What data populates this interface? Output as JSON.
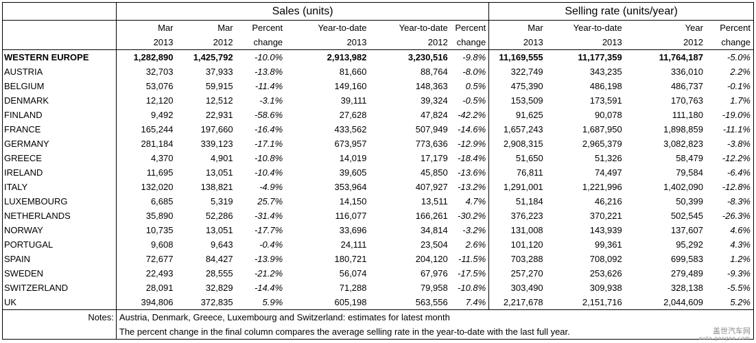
{
  "group_headers": {
    "sales": "Sales (units)",
    "selling": "Selling rate (units/year)"
  },
  "col_headers_line1": [
    "Mar",
    "Mar",
    "Percent",
    "Year-to-date",
    "Year-to-date",
    "Percent",
    "Mar",
    "Year-to-date",
    "Year",
    "Percent"
  ],
  "col_headers_line2": [
    "2013",
    "2012",
    "change",
    "2013",
    "2012",
    "change",
    "2013",
    "2013",
    "2012",
    "change"
  ],
  "rows": [
    {
      "country": "WESTERN EUROPE",
      "v": [
        "1,282,890",
        "1,425,792",
        "-10.0%",
        "2,913,982",
        "3,230,516",
        "-9.8%",
        "11,169,555",
        "11,177,359",
        "11,764,187",
        "-5.0%"
      ]
    },
    {
      "country": "AUSTRIA",
      "v": [
        "32,703",
        "37,933",
        "-13.8%",
        "81,660",
        "88,764",
        "-8.0%",
        "322,749",
        "343,235",
        "336,010",
        "2.2%"
      ]
    },
    {
      "country": "BELGIUM",
      "v": [
        "53,076",
        "59,915",
        "-11.4%",
        "149,160",
        "148,363",
        "0.5%",
        "475,390",
        "486,198",
        "486,737",
        "-0.1%"
      ]
    },
    {
      "country": "DENMARK",
      "v": [
        "12,120",
        "12,512",
        "-3.1%",
        "39,111",
        "39,324",
        "-0.5%",
        "153,509",
        "173,591",
        "170,763",
        "1.7%"
      ]
    },
    {
      "country": "FINLAND",
      "v": [
        "9,492",
        "22,931",
        "-58.6%",
        "27,628",
        "47,824",
        "-42.2%",
        "91,625",
        "90,078",
        "111,180",
        "-19.0%"
      ]
    },
    {
      "country": "FRANCE",
      "v": [
        "165,244",
        "197,660",
        "-16.4%",
        "433,562",
        "507,949",
        "-14.6%",
        "1,657,243",
        "1,687,950",
        "1,898,859",
        "-11.1%"
      ]
    },
    {
      "country": "GERMANY",
      "v": [
        "281,184",
        "339,123",
        "-17.1%",
        "673,957",
        "773,636",
        "-12.9%",
        "2,908,315",
        "2,965,379",
        "3,082,823",
        "-3.8%"
      ]
    },
    {
      "country": "GREECE",
      "v": [
        "4,370",
        "4,901",
        "-10.8%",
        "14,019",
        "17,179",
        "-18.4%",
        "51,650",
        "51,326",
        "58,479",
        "-12.2%"
      ]
    },
    {
      "country": "IRELAND",
      "v": [
        "11,695",
        "13,051",
        "-10.4%",
        "39,605",
        "45,850",
        "-13.6%",
        "76,811",
        "74,497",
        "79,584",
        "-6.4%"
      ]
    },
    {
      "country": "ITALY",
      "v": [
        "132,020",
        "138,821",
        "-4.9%",
        "353,964",
        "407,927",
        "-13.2%",
        "1,291,001",
        "1,221,996",
        "1,402,090",
        "-12.8%"
      ]
    },
    {
      "country": "LUXEMBOURG",
      "v": [
        "6,685",
        "5,319",
        "25.7%",
        "14,150",
        "13,511",
        "4.7%",
        "51,184",
        "46,216",
        "50,399",
        "-8.3%"
      ]
    },
    {
      "country": "NETHERLANDS",
      "v": [
        "35,890",
        "52,286",
        "-31.4%",
        "116,077",
        "166,261",
        "-30.2%",
        "376,223",
        "370,221",
        "502,545",
        "-26.3%"
      ]
    },
    {
      "country": "NORWAY",
      "v": [
        "10,735",
        "13,051",
        "-17.7%",
        "33,696",
        "34,814",
        "-3.2%",
        "131,008",
        "143,939",
        "137,607",
        "4.6%"
      ]
    },
    {
      "country": "PORTUGAL",
      "v": [
        "9,608",
        "9,643",
        "-0.4%",
        "24,111",
        "23,504",
        "2.6%",
        "101,120",
        "99,361",
        "95,292",
        "4.3%"
      ]
    },
    {
      "country": "SPAIN",
      "v": [
        "72,677",
        "84,427",
        "-13.9%",
        "180,721",
        "204,120",
        "-11.5%",
        "703,288",
        "708,092",
        "699,583",
        "1.2%"
      ]
    },
    {
      "country": "SWEDEN",
      "v": [
        "22,493",
        "28,555",
        "-21.2%",
        "56,074",
        "67,976",
        "-17.5%",
        "257,270",
        "253,626",
        "279,489",
        "-9.3%"
      ]
    },
    {
      "country": "SWITZERLAND",
      "v": [
        "28,091",
        "32,829",
        "-14.4%",
        "71,288",
        "79,958",
        "-10.8%",
        "303,490",
        "309,938",
        "328,138",
        "-5.5%"
      ]
    },
    {
      "country": "UK",
      "v": [
        "394,806",
        "372,835",
        "5.9%",
        "605,198",
        "563,556",
        "7.4%",
        "2,217,678",
        "2,151,716",
        "2,044,609",
        "5.2%"
      ]
    }
  ],
  "notes": {
    "label": "Notes:",
    "line1": "Austria, Denmark, Greece, Luxembourg and Switzerland: estimates for latest month",
    "line2": "The percent change in the final column compares the average selling rate in the year-to-date with the last full year."
  },
  "watermark": {
    "text": "盖世汽车网",
    "url": "auto.gasgoo.com"
  }
}
